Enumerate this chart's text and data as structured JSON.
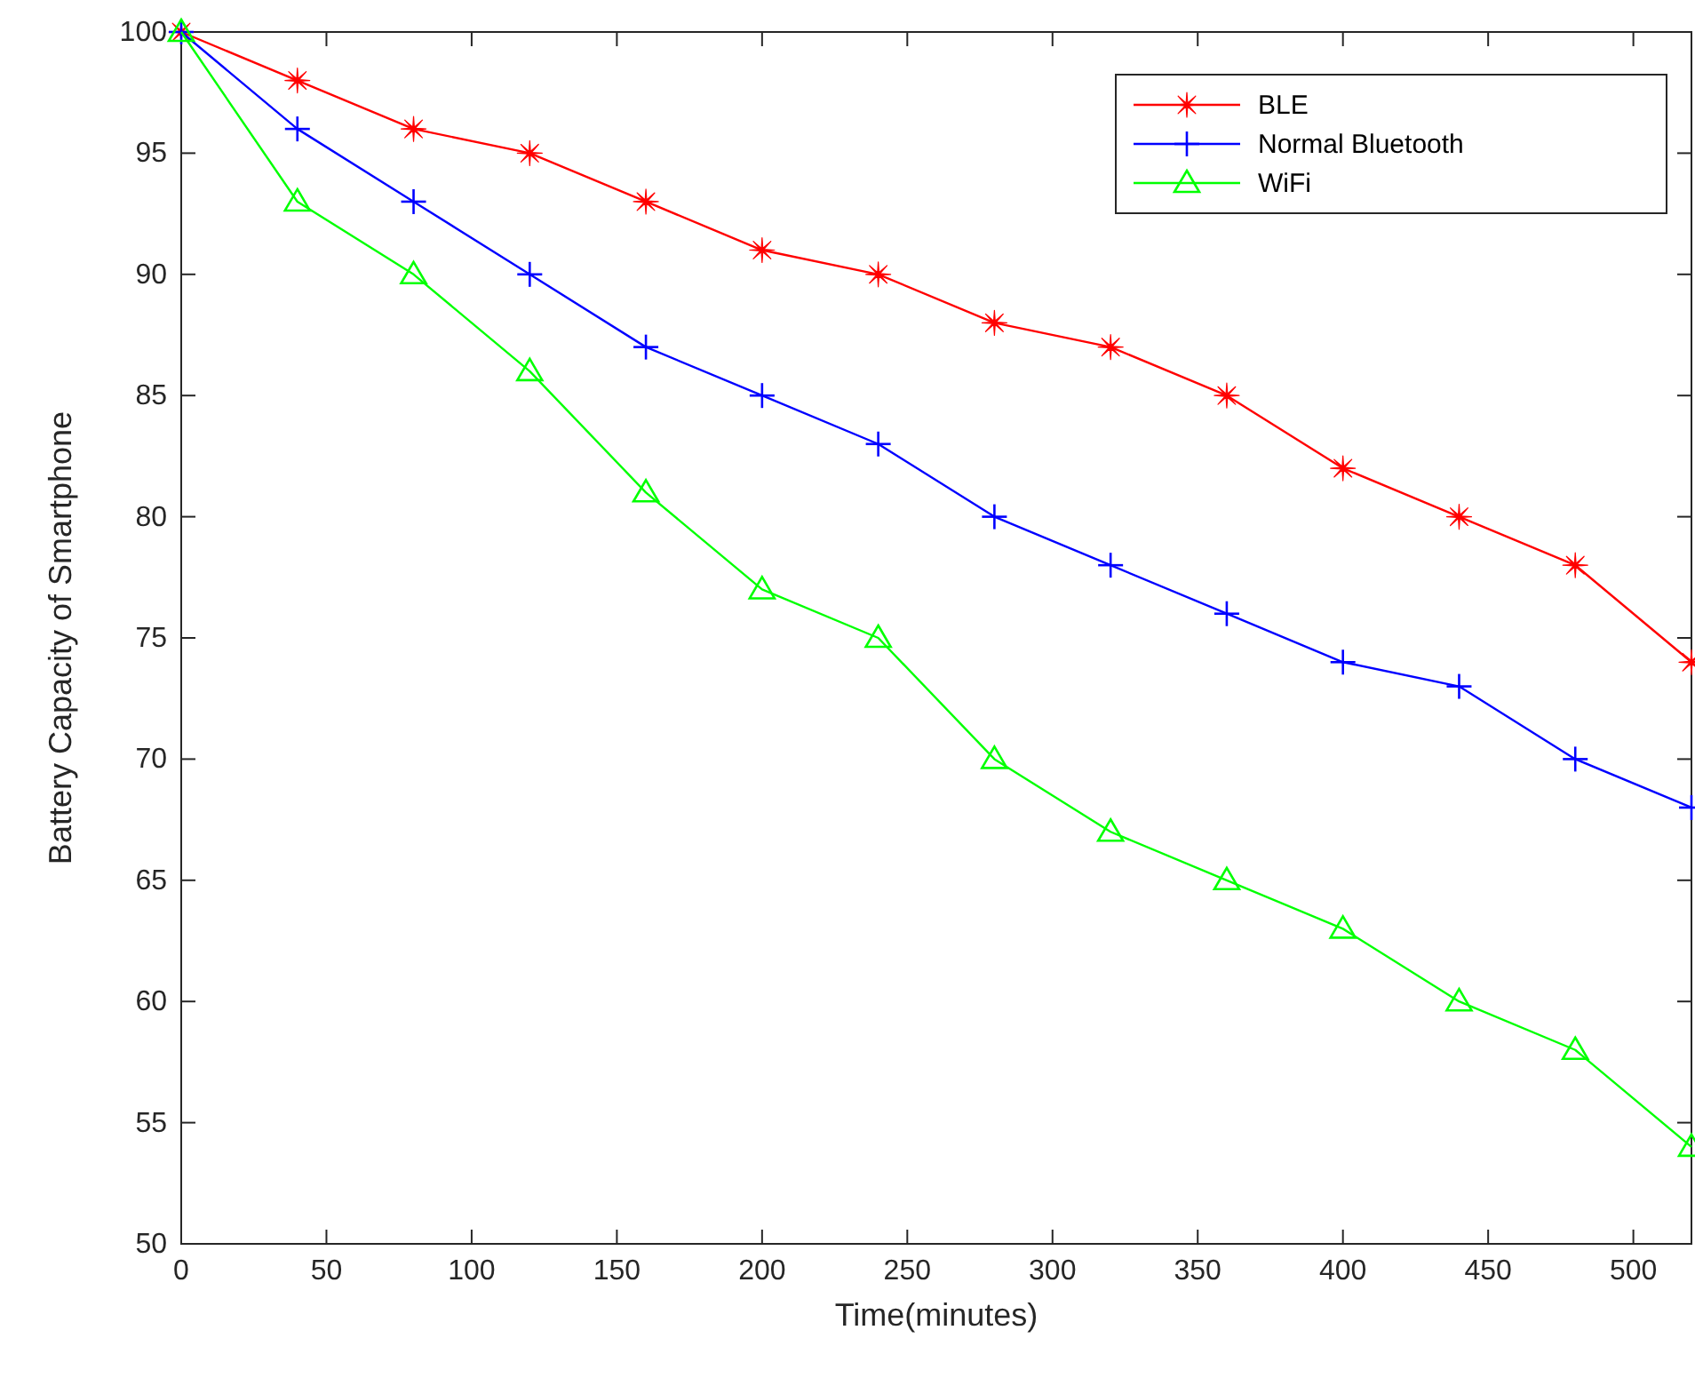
{
  "chart_data": {
    "type": "line",
    "xlabel": "Time(minutes)",
    "ylabel": "Battery Capacity of Smartphone",
    "x": [
      0,
      40,
      80,
      120,
      160,
      200,
      240,
      280,
      320,
      360,
      400,
      440,
      480,
      520
    ],
    "xlim": [
      0,
      520
    ],
    "xticks": [
      0,
      50,
      100,
      150,
      200,
      250,
      300,
      350,
      400,
      450,
      500
    ],
    "ylim": [
      50,
      100
    ],
    "yticks": [
      50,
      55,
      60,
      65,
      70,
      75,
      80,
      85,
      90,
      95,
      100
    ],
    "grid": false,
    "legend": "top right",
    "line_style": "solid",
    "series": [
      {
        "name": "BLE",
        "color": "#ff0000",
        "marker": "star",
        "values": [
          100,
          98,
          96,
          95,
          93,
          91,
          90,
          88,
          87,
          85,
          82,
          80,
          78,
          74
        ]
      },
      {
        "name": "Normal Bluetooth",
        "color": "#0000ff",
        "marker": "cross",
        "values": [
          100,
          96,
          93,
          90,
          87,
          85,
          83,
          80,
          78,
          76,
          74,
          73,
          70,
          68
        ]
      },
      {
        "name": "WiFi",
        "color": "#00ff00",
        "marker": "triangle",
        "values": [
          100,
          93,
          90,
          86,
          81,
          77,
          75,
          70,
          67,
          65,
          63,
          60,
          58,
          54
        ]
      }
    ]
  }
}
